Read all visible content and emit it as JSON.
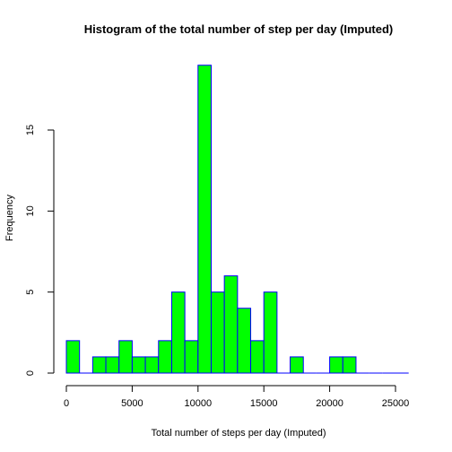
{
  "chart_data": {
    "type": "bar",
    "title": "Histogram of the total number of step per day (Imputed)",
    "xlabel": "Total number of steps per day (Imputed)",
    "ylabel": "Frequency",
    "xlim": [
      0,
      25000
    ],
    "ylim": [
      0,
      19
    ],
    "bin_width": 1000,
    "bins": [
      {
        "start": 0,
        "end": 1000,
        "count": 2
      },
      {
        "start": 1000,
        "end": 2000,
        "count": 0
      },
      {
        "start": 2000,
        "end": 3000,
        "count": 1
      },
      {
        "start": 3000,
        "end": 4000,
        "count": 1
      },
      {
        "start": 4000,
        "end": 5000,
        "count": 2
      },
      {
        "start": 5000,
        "end": 6000,
        "count": 1
      },
      {
        "start": 6000,
        "end": 7000,
        "count": 1
      },
      {
        "start": 7000,
        "end": 8000,
        "count": 2
      },
      {
        "start": 8000,
        "end": 9000,
        "count": 5
      },
      {
        "start": 9000,
        "end": 10000,
        "count": 2
      },
      {
        "start": 10000,
        "end": 11000,
        "count": 19
      },
      {
        "start": 11000,
        "end": 12000,
        "count": 5
      },
      {
        "start": 12000,
        "end": 13000,
        "count": 6
      },
      {
        "start": 13000,
        "end": 14000,
        "count": 4
      },
      {
        "start": 14000,
        "end": 15000,
        "count": 2
      },
      {
        "start": 15000,
        "end": 16000,
        "count": 5
      },
      {
        "start": 16000,
        "end": 17000,
        "count": 0
      },
      {
        "start": 17000,
        "end": 18000,
        "count": 1
      },
      {
        "start": 18000,
        "end": 19000,
        "count": 0
      },
      {
        "start": 19000,
        "end": 20000,
        "count": 0
      },
      {
        "start": 20000,
        "end": 21000,
        "count": 1
      },
      {
        "start": 21000,
        "end": 22000,
        "count": 1
      },
      {
        "start": 22000,
        "end": 23000,
        "count": 0
      },
      {
        "start": 23000,
        "end": 24000,
        "count": 0
      },
      {
        "start": 24000,
        "end": 25000,
        "count": 0
      },
      {
        "start": 25000,
        "end": 26000,
        "count": 0
      }
    ],
    "x_ticks": [
      0,
      5000,
      10000,
      15000,
      20000,
      25000
    ],
    "x_tick_labels": [
      "0",
      "5000",
      "10000",
      "15000",
      "20000",
      "25000"
    ],
    "y_ticks": [
      0,
      5,
      10,
      15
    ],
    "y_tick_labels": [
      "0",
      "5",
      "10",
      "15"
    ],
    "grid": false,
    "bar_fill": "#00ff00",
    "bar_border": "#0000ff"
  }
}
